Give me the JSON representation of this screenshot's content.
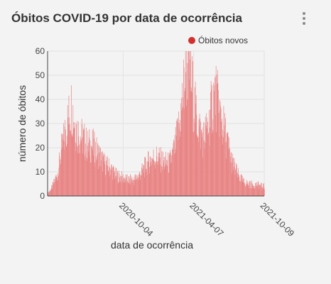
{
  "card": {
    "title": "Óbitos COVID-19 por data de ocorrência",
    "menu_icon": "kebab-menu-icon"
  },
  "colors": {
    "bar": "#e98686",
    "legend_dot": "#d32f2f",
    "grid": "#e2e2e2",
    "axis": "#444444"
  },
  "chart_data": {
    "type": "bar",
    "title": "",
    "xlabel": "data de ocorrência",
    "ylabel": "número de óbitos",
    "ylim": [
      0,
      60
    ],
    "yticks": [
      0,
      10,
      20,
      30,
      40,
      50,
      60
    ],
    "xlim": [
      "2020-03-20",
      "2021-10-09"
    ],
    "xticks": [
      "2020-10-04",
      "2021-04-07",
      "2021-10-09"
    ],
    "grid": true,
    "legend_position": "top-right",
    "series": [
      {
        "name": "Óbitos novos",
        "points": [
          [
            "2020-03-20",
            1
          ],
          [
            "2020-04-01",
            4
          ],
          [
            "2020-04-15",
            10
          ],
          [
            "2020-04-25",
            20
          ],
          [
            "2020-05-05",
            28
          ],
          [
            "2020-05-15",
            35
          ],
          [
            "2020-05-22",
            40
          ],
          [
            "2020-06-01",
            30
          ],
          [
            "2020-06-10",
            27
          ],
          [
            "2020-06-20",
            25
          ],
          [
            "2020-07-01",
            22
          ],
          [
            "2020-07-15",
            22
          ],
          [
            "2020-08-01",
            18
          ],
          [
            "2020-08-15",
            14
          ],
          [
            "2020-09-01",
            12
          ],
          [
            "2020-09-15",
            9
          ],
          [
            "2020-10-01",
            8
          ],
          [
            "2020-10-15",
            7
          ],
          [
            "2020-11-01",
            7
          ],
          [
            "2020-11-15",
            9
          ],
          [
            "2020-12-01",
            13
          ],
          [
            "2020-12-15",
            16
          ],
          [
            "2021-01-01",
            17
          ],
          [
            "2021-01-15",
            15
          ],
          [
            "2021-02-01",
            14
          ],
          [
            "2021-02-15",
            20
          ],
          [
            "2021-03-01",
            32
          ],
          [
            "2021-03-10",
            45
          ],
          [
            "2021-03-20",
            58
          ],
          [
            "2021-03-28",
            55
          ],
          [
            "2021-04-07",
            40
          ],
          [
            "2021-04-20",
            30
          ],
          [
            "2021-05-01",
            25
          ],
          [
            "2021-05-15",
            30
          ],
          [
            "2021-05-25",
            40
          ],
          [
            "2021-06-02",
            45
          ],
          [
            "2021-06-15",
            35
          ],
          [
            "2021-07-01",
            25
          ],
          [
            "2021-07-15",
            15
          ],
          [
            "2021-08-01",
            9
          ],
          [
            "2021-08-15",
            6
          ],
          [
            "2021-09-01",
            5
          ],
          [
            "2021-09-15",
            5
          ],
          [
            "2021-10-09",
            4
          ]
        ]
      }
    ]
  }
}
